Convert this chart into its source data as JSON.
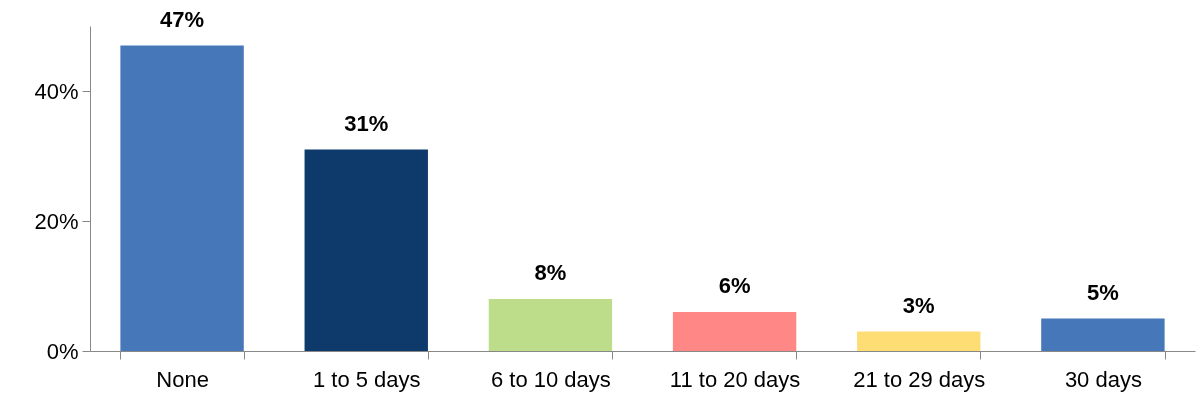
{
  "chart_data": {
    "type": "bar",
    "categories": [
      "None",
      "1 to 5 days",
      "6 to 10 days",
      "11 to 20 days",
      "21 to 29 days",
      "30 days"
    ],
    "values": [
      47,
      31,
      8,
      6,
      3,
      5
    ],
    "value_labels": [
      "47%",
      "31%",
      "8%",
      "6%",
      "3%",
      "5%"
    ],
    "colors": [
      "#4677b8",
      "#0e3a6b",
      "#bedd8a",
      "#ff8785",
      "#ffdd75",
      "#4677b8"
    ],
    "ylim": [
      0,
      50
    ],
    "yticks": [
      {
        "value": 0,
        "label": "0%"
      },
      {
        "value": 20,
        "label": "20%"
      },
      {
        "value": 40,
        "label": "40%"
      }
    ],
    "grid": false
  }
}
